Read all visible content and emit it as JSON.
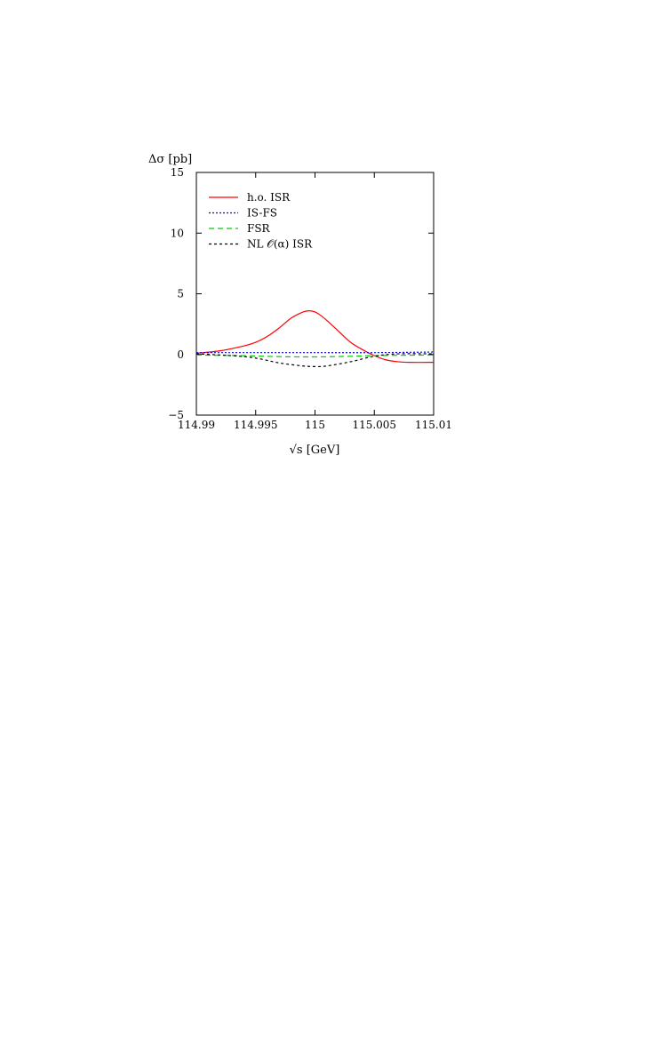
{
  "chart_data": {
    "type": "line",
    "title": "",
    "ylabel": "Δσ [pb]",
    "xlabel": "√s [GeV]",
    "xlim": [
      114.99,
      115.01
    ],
    "ylim": [
      -5,
      15
    ],
    "x_ticks": [
      114.99,
      114.995,
      115,
      115.005,
      115.01
    ],
    "x_tick_labels": [
      "114.99",
      "114.995",
      "115",
      "115.005",
      "115.01"
    ],
    "y_ticks": [
      -5,
      0,
      5,
      10,
      15
    ],
    "y_tick_labels": [
      "−5",
      "0",
      "5",
      "10",
      "15"
    ],
    "legend_position": "top-left",
    "grid": false,
    "series": [
      {
        "name": "h.o. ISR",
        "color": "#ff0000",
        "dash": "solid",
        "x": [
          114.99,
          114.992,
          114.994,
          114.995,
          114.996,
          114.997,
          114.998,
          114.999,
          114.9995,
          115,
          115.0005,
          115.001,
          115.002,
          115.003,
          115.004,
          115.005,
          115.006,
          115.007,
          115.008,
          115.01
        ],
        "y": [
          0.1,
          0.3,
          0.7,
          1.0,
          1.5,
          2.2,
          3.0,
          3.5,
          3.6,
          3.5,
          3.2,
          2.8,
          1.9,
          1.0,
          0.4,
          -0.1,
          -0.45,
          -0.6,
          -0.65,
          -0.65
        ]
      },
      {
        "name": "IS-FS",
        "color": "#0000ff",
        "dash": "dotted",
        "x": [
          114.99,
          114.995,
          115,
          115.005,
          115.01
        ],
        "y": [
          0.15,
          0.15,
          0.15,
          0.15,
          0.2
        ]
      },
      {
        "name": "FSR",
        "color": "#00cc00",
        "dash": "dashed",
        "x": [
          114.99,
          114.994,
          114.997,
          115,
          115.003,
          115.006,
          115.01
        ],
        "y": [
          -0.05,
          -0.1,
          -0.18,
          -0.2,
          -0.15,
          -0.08,
          -0.05
        ]
      },
      {
        "name": "NL 𝒪(α) ISR",
        "color": "#000000",
        "dash": "short-dashed",
        "x": [
          114.99,
          114.993,
          114.995,
          114.997,
          114.999,
          115,
          115.001,
          115.003,
          115.005,
          115.007,
          115.01
        ],
        "y": [
          0.05,
          -0.1,
          -0.3,
          -0.7,
          -0.95,
          -1.0,
          -0.95,
          -0.6,
          -0.15,
          0.05,
          0.05
        ]
      }
    ]
  }
}
